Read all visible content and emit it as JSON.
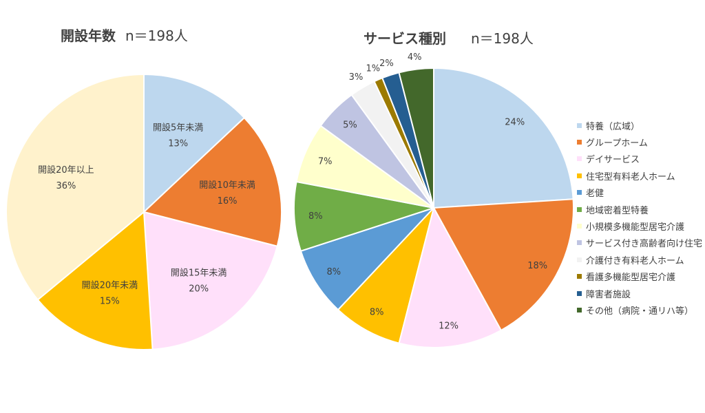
{
  "chart_data": [
    {
      "type": "pie",
      "title": "開設年数",
      "subtitle": "n＝198人",
      "categories": [
        "開設5年未満",
        "開設10年未満",
        "開設15年未満",
        "開設20年未満",
        "開設20年以上"
      ],
      "values": [
        13,
        16,
        20,
        15,
        36
      ],
      "value_labels": [
        "13%",
        "16%",
        "20%",
        "15%",
        "36%"
      ],
      "colors": [
        "#bdd7ee",
        "#ed7d31",
        "#ffe0fa",
        "#ffc000",
        "#fff2cc"
      ],
      "legend": "none"
    },
    {
      "type": "pie",
      "title": "サービス種別",
      "subtitle": "n＝198人",
      "categories": [
        "特養（広域）",
        "グループホーム",
        "デイサービス",
        "住宅型有料老人ホーム",
        "老健",
        "地域密着型特養",
        "小規模多機能型居宅介護",
        "サービス付き高齢者向け住宅",
        "介護付き有料老人ホーム",
        "看護多機能型居宅介護",
        "障害者施設",
        "その他（病院・通リハ等）"
      ],
      "values": [
        24,
        18,
        12,
        8,
        8,
        8,
        7,
        5,
        3,
        1,
        2,
        4
      ],
      "value_labels": [
        "24%",
        "18%",
        "12%",
        "8%",
        "8%",
        "8%",
        "7%",
        "5%",
        "3%",
        "1%",
        "2%",
        "4%"
      ],
      "colors": [
        "#bdd7ee",
        "#ed7d31",
        "#ffe0fa",
        "#ffc000",
        "#5b9bd5",
        "#70ad47",
        "#ffffcc",
        "#bfc4e2",
        "#f2f2f2",
        "#9c7a00",
        "#255e91",
        "#43682b"
      ],
      "legend": "right"
    }
  ]
}
